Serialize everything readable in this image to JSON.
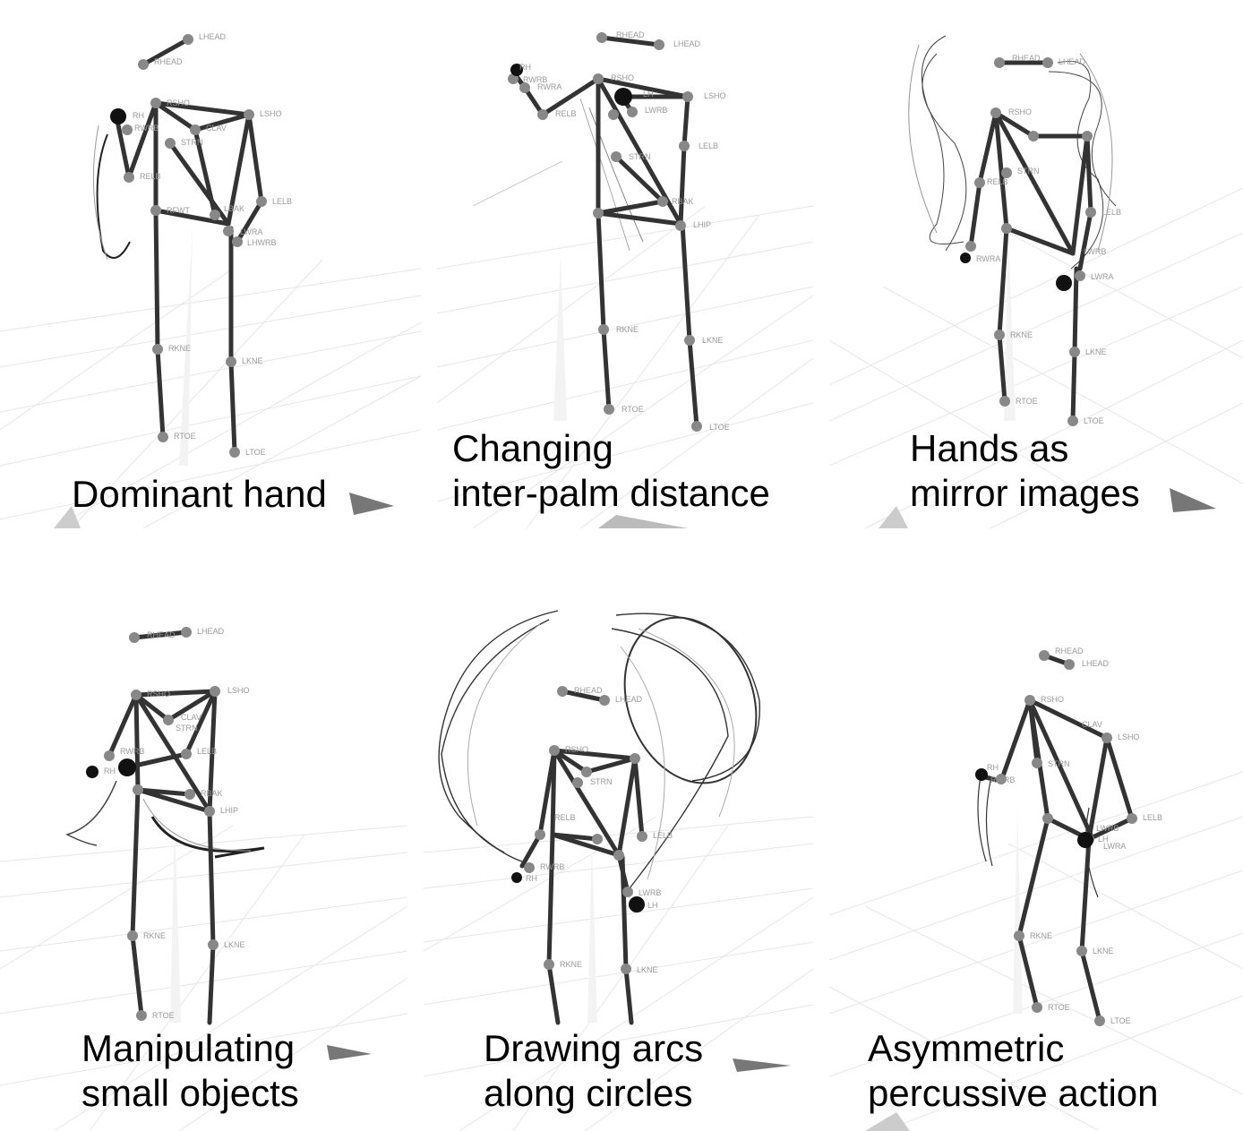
{
  "panels": [
    {
      "id": "p1",
      "caption": [
        "Dominant hand"
      ],
      "labels": [
        "LHEAD",
        "RHEAD",
        "RSHO",
        "LSHO",
        "RH",
        "RWRB",
        "STRN",
        "CLAV",
        "RELB",
        "LELB",
        "RFWT",
        "LBAK",
        "LWRA",
        "LHWRB",
        "RKNE",
        "LKNE",
        "RTOE",
        "LTOE"
      ]
    },
    {
      "id": "p2",
      "caption": [
        "Changing",
        "inter-palm distance"
      ],
      "labels": [
        "RHEAD",
        "LHEAD",
        "RSHO",
        "LSHO",
        "RH",
        "LH",
        "RWRB",
        "RWRA",
        "RELB",
        "LWRB",
        "STRN",
        "LELB",
        "RBAK",
        "LHIP",
        "RKNE",
        "LKNE",
        "RTOE",
        "LTOE"
      ]
    },
    {
      "id": "p3",
      "caption": [
        "Hands as",
        "mirror images"
      ],
      "labels": [
        "RHEAD",
        "LHEAD",
        "RSHO",
        "STRN",
        "RELB",
        "LELB",
        "RWRA",
        "LWRB",
        "LWRA",
        "RKNE",
        "LKNE",
        "RTOE",
        "LTOE"
      ]
    },
    {
      "id": "p4",
      "caption": [
        "Manipulating",
        "small objects"
      ],
      "labels": [
        "RHEAD",
        "LHEAD",
        "LSHO",
        "RSHO",
        "CLAV",
        "STRN",
        "RWRB",
        "LELB",
        "RH",
        "RBAK",
        "LHIP",
        "RKNE",
        "LKNE",
        "RTOE"
      ]
    },
    {
      "id": "p5",
      "caption": [
        "Drawing arcs",
        "along circles"
      ],
      "labels": [
        "RHEAD",
        "LHEAD",
        "RSHO",
        "STRN",
        "RELB",
        "LELB",
        "RWRB",
        "RH",
        "LWRB",
        "LH",
        "RKNE",
        "LKNE"
      ]
    },
    {
      "id": "p6",
      "caption": [
        "Asymmetric",
        "percussive action"
      ],
      "labels": [
        "RHEAD",
        "LHEAD",
        "RSHO",
        "CLAV",
        "LSHO",
        "RH",
        "RWRB",
        "STRN",
        "LELB",
        "LWRB",
        "LH",
        "LWRA",
        "RKNE",
        "LKNE",
        "RTOE",
        "LTOE"
      ]
    }
  ]
}
